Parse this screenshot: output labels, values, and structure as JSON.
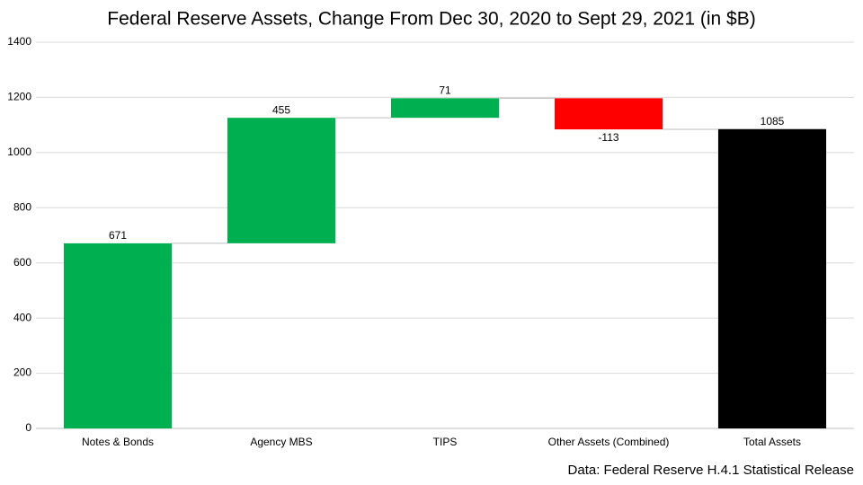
{
  "chart_data": {
    "type": "waterfall",
    "title": "Federal Reserve Assets, Change From Dec 30, 2020 to Sept 29, 2021 (in $B)",
    "categories": [
      "Notes & Bonds",
      "Agency MBS",
      "TIPS",
      "Other Assets (Combined)",
      "Total Assets"
    ],
    "values": [
      671,
      455,
      71,
      -113,
      1085
    ],
    "is_total": [
      false,
      false,
      false,
      false,
      true
    ],
    "colors": [
      "#00b050",
      "#00b050",
      "#00b050",
      "#ff0000",
      "#000000"
    ],
    "ylim": [
      0,
      1400
    ],
    "yticks": [
      0,
      200,
      400,
      600,
      800,
      1000,
      1200,
      1400
    ],
    "grid": true,
    "source": "Data: Federal Reserve H.4.1 Statistical Release"
  }
}
